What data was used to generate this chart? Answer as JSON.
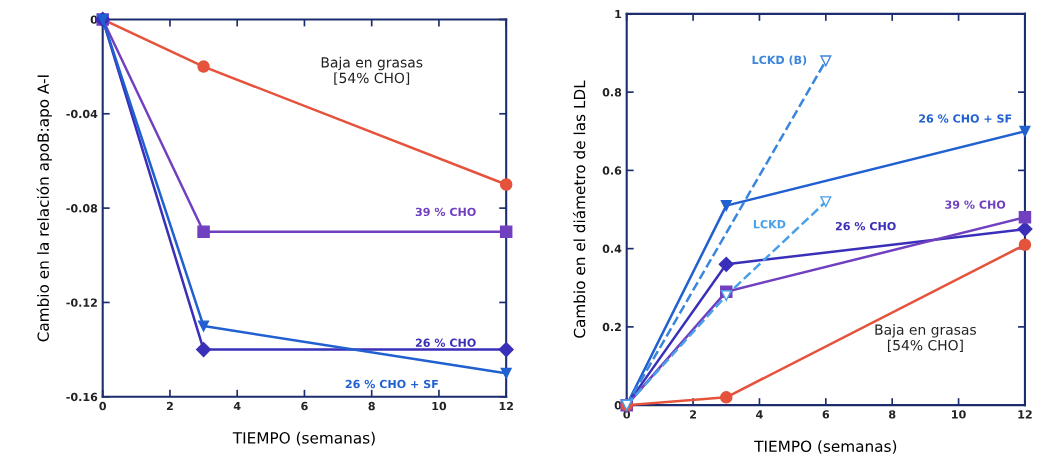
{
  "chart_data": [
    {
      "type": "line",
      "xlabel": "TIEMPO (semanas)",
      "ylabel": "Cambio en la relación apoB:apo A-I",
      "xlim": [
        0,
        12
      ],
      "xticks": [
        0,
        2,
        4,
        6,
        8,
        10,
        12
      ],
      "ylim": [
        -0.16,
        0
      ],
      "yticks": [
        {
          "value": -0.16,
          "label": "-0.16"
        },
        {
          "value": -0.12,
          "label": "-0.12"
        },
        {
          "value": -0.08,
          "label": "-0.08"
        },
        {
          "value": -0.04,
          "label": "-0.04"
        },
        0
      ],
      "grid": false,
      "series": [
        {
          "name": "Baja en grasas\n[54% CHO]",
          "color": "#e5533d",
          "marker": "circle",
          "x": [
            0,
            3,
            12
          ],
          "values": [
            0,
            -0.02,
            -0.07
          ]
        },
        {
          "name": "39 % CHO",
          "color": "#7040c0",
          "marker": "square",
          "x": [
            0,
            3,
            12
          ],
          "values": [
            0,
            -0.09,
            -0.09
          ]
        },
        {
          "name": "26 % CHO",
          "color": "#3a2fb8",
          "marker": "diamond",
          "x": [
            0,
            3,
            12
          ],
          "values": [
            0,
            -0.14,
            -0.14
          ]
        },
        {
          "name": "26 % CHO + SF",
          "color": "#2060d0",
          "marker": "triangle",
          "x": [
            0,
            3,
            12
          ],
          "values": [
            0,
            -0.13,
            -0.15
          ]
        }
      ]
    },
    {
      "type": "line",
      "xlabel": "TIEMPO (semanas)",
      "ylabel": "Cambio en el diámetro de las LDL",
      "xlim": [
        0,
        12
      ],
      "xticks": [
        0,
        2,
        4,
        6,
        8,
        10,
        12
      ],
      "ylim": [
        0,
        1
      ],
      "yticks": [
        0,
        0.2,
        0.4,
        0.6,
        0.8,
        1
      ],
      "grid": false,
      "series": [
        {
          "name": "LCKD (B)",
          "color": "#3a86dc",
          "marker": "triangle",
          "line_style": "dashed",
          "x": [
            0,
            6
          ],
          "values": [
            0,
            0.88
          ]
        },
        {
          "name": "LCKD",
          "color": "#4aa0e8",
          "marker": "triangle",
          "line_style": "dashed",
          "x": [
            0,
            3,
            6
          ],
          "values": [
            0,
            0.28,
            0.52
          ]
        },
        {
          "name": "26 % CHO + SF",
          "color": "#2060d0",
          "marker": "triangle",
          "x": [
            0,
            3,
            12
          ],
          "values": [
            0,
            0.51,
            0.7
          ]
        },
        {
          "name": "26 % CHO",
          "color": "#3a2fb8",
          "marker": "diamond",
          "x": [
            0,
            3,
            12
          ],
          "values": [
            0,
            0.36,
            0.45
          ]
        },
        {
          "name": "39 % CHO",
          "color": "#7040c0",
          "marker": "square",
          "x": [
            0,
            3,
            12
          ],
          "values": [
            0,
            0.29,
            0.48
          ]
        },
        {
          "name": "Baja en grasas\n[54% CHO]",
          "color": "#e5533d",
          "marker": "circle",
          "x": [
            0,
            3,
            12
          ],
          "values": [
            0,
            0.02,
            0.41
          ]
        }
      ]
    }
  ]
}
